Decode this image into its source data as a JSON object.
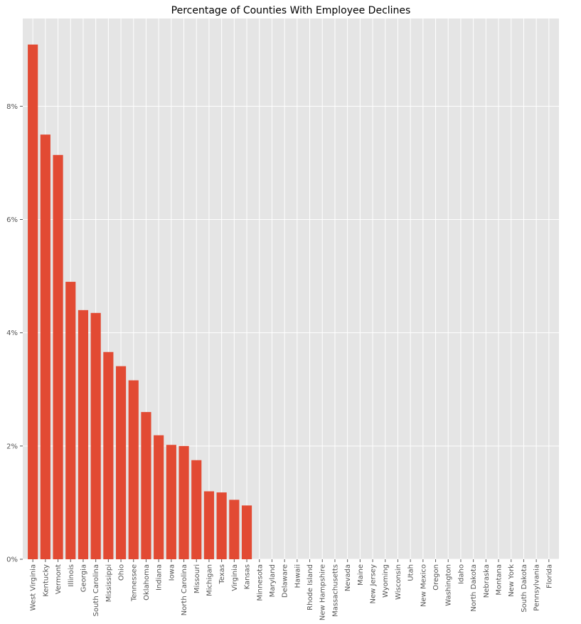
{
  "chart_data": {
    "type": "bar",
    "title": "Percentage of Counties With Employee Declines",
    "xlabel": "",
    "ylabel": "",
    "categories": [
      "West Virginia",
      "Kentucky",
      "Vermont",
      "Illinois",
      "Georgia",
      "South Carolina",
      "Mississippi",
      "Ohio",
      "Tennessee",
      "Oklahoma",
      "Indiana",
      "Iowa",
      "North Carolina",
      "Missouri",
      "Michigan",
      "Texas",
      "Virginia",
      "Kansas",
      "Minnesota",
      "Maryland",
      "Delaware",
      "Hawaii",
      "Rhode Island",
      "New Hampshire",
      "Massachusetts",
      "Nevada",
      "Maine",
      "New Jersey",
      "Wyoming",
      "Wisconsin",
      "Utah",
      "New Mexico",
      "Oregon",
      "Washington",
      "Idaho",
      "North Dakota",
      "Nebraska",
      "Montana",
      "New York",
      "South Dakota",
      "Pennsylvania",
      "Florida"
    ],
    "values": [
      9.09,
      7.5,
      7.14,
      4.9,
      4.4,
      4.35,
      3.66,
      3.41,
      3.16,
      2.6,
      2.19,
      2.02,
      2.0,
      1.75,
      1.2,
      1.18,
      1.05,
      0.95,
      0,
      0,
      0,
      0,
      0,
      0,
      0,
      0,
      0,
      0,
      0,
      0,
      0,
      0,
      0,
      0,
      0,
      0,
      0,
      0,
      0,
      0,
      0,
      0
    ],
    "ylim": [
      0,
      9.55
    ],
    "yticks": [
      0,
      2,
      4,
      6,
      8
    ],
    "ytick_labels": [
      "0%",
      "2%",
      "4%",
      "6%",
      "8%"
    ],
    "grid": true,
    "bar_color": "#E24A33",
    "background_color": "#E5E5E5",
    "grid_color": "#FFFFFF"
  }
}
